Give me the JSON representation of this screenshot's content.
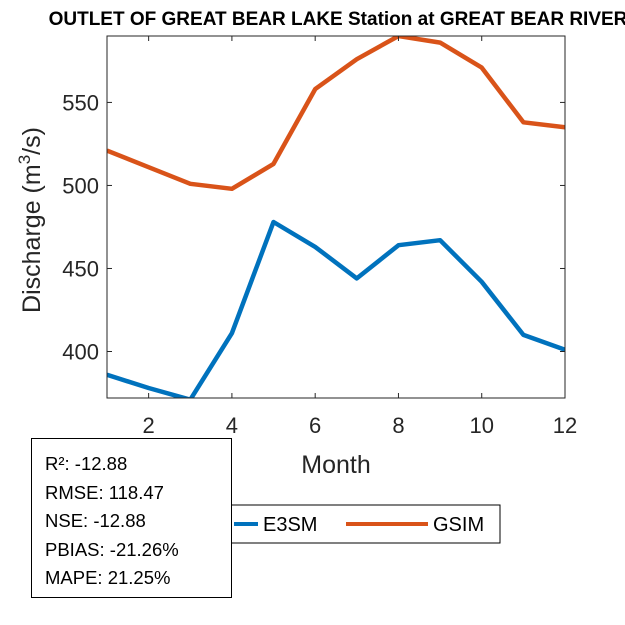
{
  "chart_data": {
    "type": "line",
    "title": "OUTLET OF GREAT BEAR LAKE  Station at  GREAT BEAR RIVER",
    "xlabel": "Month",
    "ylabel": "Discharge (m³/s)",
    "ylabel_parts": {
      "before": "Discharge (m",
      "sup": "3",
      "after": "/s)"
    },
    "xlim": [
      1,
      12
    ],
    "ylim": [
      372,
      590
    ],
    "xticks": [
      2,
      4,
      6,
      8,
      10,
      12
    ],
    "yticks": [
      400,
      450,
      500,
      550
    ],
    "x": [
      1,
      2,
      3,
      4,
      5,
      6,
      7,
      8,
      9,
      10,
      11,
      12
    ],
    "series": [
      {
        "name": "E3SM",
        "color": "#0072BD",
        "values": [
          386,
          378,
          371,
          411,
          478,
          463,
          444,
          464,
          467,
          442,
          410,
          401
        ]
      },
      {
        "name": "GSIM",
        "color": "#D95319",
        "values": [
          521,
          511,
          501,
          498,
          513,
          558,
          576,
          590,
          586,
          571,
          538,
          535
        ]
      }
    ],
    "legend": {
      "placement": "bottom-center",
      "entries": [
        "E3SM",
        "GSIM"
      ]
    },
    "grid": false
  },
  "stats": [
    "R²: -12.88",
    "RMSE: 118.47",
    "NSE: -12.88",
    "PBIAS: -21.26%",
    "MAPE: 21.25%"
  ]
}
